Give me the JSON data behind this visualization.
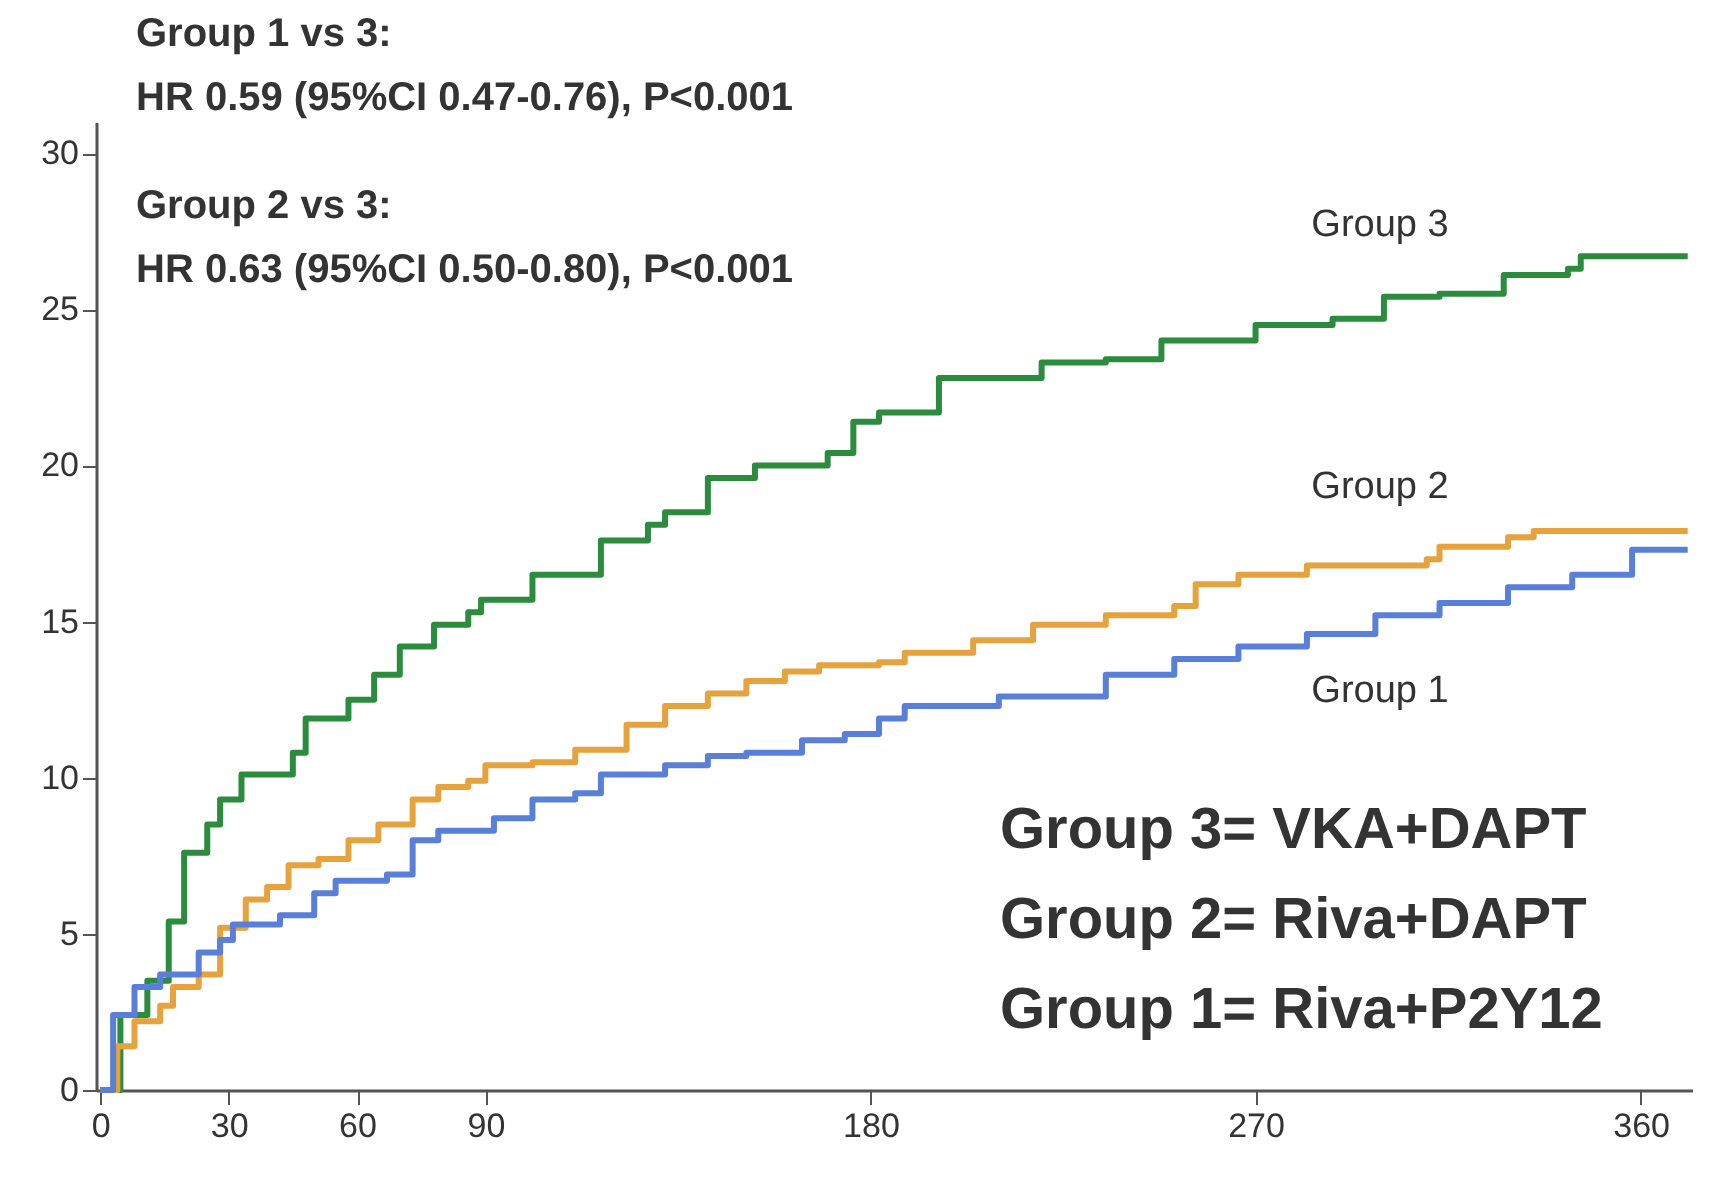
{
  "chart_data": {
    "type": "step",
    "xlim": [
      -1,
      372
    ],
    "ylim": [
      0,
      31
    ],
    "xticks": [
      0,
      30,
      60,
      90,
      180,
      270,
      360
    ],
    "yticks": [
      0,
      5,
      10,
      15,
      20,
      25,
      30
    ],
    "grid": false,
    "marker": "none",
    "line_style": "solid",
    "annotations": [
      "Group 1 vs 3:",
      "HR 0.59 (95%CI 0.47-0.76), P<0.001",
      "Group 2 vs 3:",
      "HR 0.63 (95%CI 0.50-0.80), P<0.001",
      "Group 3= VKA+DAPT",
      "Group 2= Riva+DAPT",
      "Group 1= Riva+P2Y12"
    ],
    "series": [
      {
        "name": "Group 3",
        "color": "#2a8c3c",
        "x": [
          0,
          4.7,
          11,
          16,
          19.6,
          25,
          28,
          33,
          39,
          45,
          48,
          58,
          64,
          70,
          78,
          86,
          89,
          101,
          111,
          117,
          128,
          132,
          142,
          153,
          164,
          170,
          176,
          182,
          196,
          220,
          235,
          248,
          270,
          288,
          300,
          313,
          328,
          343,
          346,
          371
        ],
        "values": [
          0,
          2.4,
          3.5,
          5.4,
          7.6,
          8.5,
          9.3,
          10.1,
          10.1,
          10.8,
          11.9,
          12.5,
          13.3,
          14.2,
          14.9,
          15.3,
          15.7,
          16.5,
          16.5,
          17.6,
          18.1,
          18.5,
          19.6,
          20.0,
          20.0,
          20.4,
          21.4,
          21.7,
          22.8,
          23.3,
          23.4,
          24.0,
          24.5,
          24.7,
          25.4,
          25.5,
          26.1,
          26.3,
          26.7,
          26.7
        ]
      },
      {
        "name": "Group 2",
        "color": "#e6a23c",
        "x": [
          0,
          4,
          8,
          14,
          17,
          23,
          28,
          34,
          39,
          44,
          51,
          58,
          65,
          73,
          79,
          86,
          90,
          101,
          111,
          123,
          132,
          142,
          151,
          160,
          168,
          182,
          188,
          204,
          218,
          235,
          251,
          256,
          266,
          282,
          310,
          313,
          329,
          335,
          371
        ],
        "values": [
          0,
          1.4,
          2.2,
          2.7,
          3.3,
          3.7,
          5.2,
          6.1,
          6.5,
          7.2,
          7.4,
          8.0,
          8.5,
          9.3,
          9.7,
          9.9,
          10.4,
          10.5,
          10.9,
          11.7,
          12.3,
          12.7,
          13.1,
          13.4,
          13.6,
          13.7,
          14.0,
          14.4,
          14.9,
          15.2,
          15.5,
          16.2,
          16.5,
          16.8,
          17.0,
          17.4,
          17.7,
          17.9,
          17.9
        ]
      },
      {
        "name": "Group 1",
        "color": "#5a7fd8",
        "x": [
          0,
          3,
          8,
          14,
          23,
          28,
          31,
          42,
          50,
          55,
          67,
          73,
          79,
          92,
          101,
          111,
          117,
          132,
          142,
          151,
          164,
          174,
          182,
          188,
          210,
          235,
          251,
          266,
          282,
          298,
          313,
          329,
          344,
          358,
          371
        ],
        "values": [
          0,
          2.4,
          3.3,
          3.7,
          4.4,
          4.8,
          5.3,
          5.6,
          6.3,
          6.7,
          6.9,
          8.0,
          8.3,
          8.7,
          9.3,
          9.5,
          10.1,
          10.4,
          10.7,
          10.8,
          11.2,
          11.4,
          11.9,
          12.3,
          12.6,
          13.3,
          13.8,
          14.2,
          14.6,
          15.2,
          15.6,
          16.1,
          16.5,
          17.3,
          17.3
        ]
      }
    ]
  }
}
